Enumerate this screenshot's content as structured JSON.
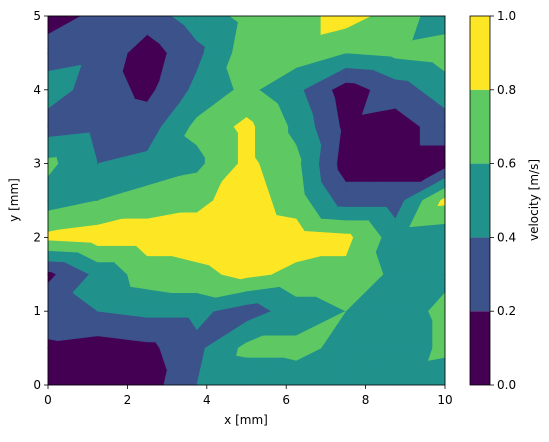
{
  "chart_data": {
    "type": "contourf",
    "xlabel": "x [mm]",
    "ylabel": "y [mm]",
    "colorbar_label": "velocity [m/s]",
    "x": [
      0,
      1.25,
      2.5,
      3.75,
      5,
      6.25,
      7.5,
      8.75,
      10
    ],
    "y": [
      0,
      0.5,
      1,
      1.5,
      2,
      2.5,
      3,
      3.5,
      4,
      4.5,
      5
    ],
    "z": [
      [
        0.15,
        0.1,
        0.1,
        0.4,
        0.45,
        0.5,
        0.45,
        0.5,
        0.45
      ],
      [
        0.15,
        0.1,
        0.15,
        0.35,
        0.65,
        0.65,
        0.55,
        0.45,
        0.65
      ],
      [
        0.35,
        0.4,
        0.45,
        0.45,
        0.3,
        0.5,
        0.6,
        0.5,
        0.65
      ],
      [
        0.15,
        0.45,
        0.7,
        0.75,
        0.85,
        0.75,
        0.75,
        0.55,
        0.55
      ],
      [
        0.85,
        0.9,
        0.9,
        0.9,
        0.95,
        0.9,
        0.85,
        0.5,
        0.45
      ],
      [
        0.5,
        0.6,
        0.7,
        0.75,
        0.9,
        0.7,
        0.3,
        0.3,
        0.85
      ],
      [
        0.65,
        0.4,
        0.45,
        0.55,
        0.85,
        0.65,
        0.1,
        0.1,
        0.1
      ],
      [
        0.3,
        0.35,
        0.3,
        0.65,
        0.85,
        0.55,
        0.15,
        0.1,
        0.3
      ],
      [
        0.5,
        0.3,
        0.15,
        0.45,
        0.65,
        0.45,
        0.1,
        0.3,
        0.5
      ],
      [
        0.3,
        0.35,
        0.1,
        0.35,
        0.7,
        0.7,
        0.6,
        0.65,
        0.7
      ],
      [
        0.1,
        0.25,
        0.3,
        0.5,
        0.65,
        0.7,
        0.9,
        0.7,
        0.5
      ]
    ],
    "levels": [
      {
        "value": 0,
        "label": "0.0"
      },
      {
        "value": 0.2,
        "label": "0.2"
      },
      {
        "value": 0.4,
        "label": "0.4"
      },
      {
        "value": 0.6,
        "label": "0.6"
      },
      {
        "value": 0.8,
        "label": "0.8"
      },
      {
        "value": 1,
        "label": "1.0"
      }
    ],
    "colors": [
      "#440154",
      "#3b528b",
      "#21918c",
      "#5ec962",
      "#fde725"
    ],
    "xlim": [
      0,
      10
    ],
    "ylim": [
      0,
      5
    ],
    "xticks": [
      0,
      2,
      4,
      6,
      8,
      10
    ],
    "yticks": [
      0,
      1,
      2,
      3,
      4,
      5
    ]
  }
}
